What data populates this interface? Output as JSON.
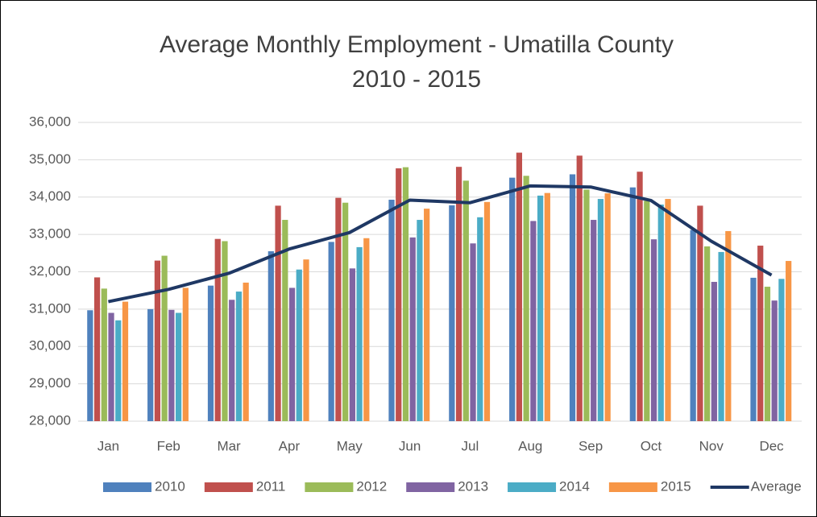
{
  "chart_data": {
    "type": "bar",
    "title": "Average Monthly Employment - Umatilla County",
    "subtitle": "2010 - 2015",
    "categories": [
      "Jan",
      "Feb",
      "Mar",
      "Apr",
      "May",
      "Jun",
      "Jul",
      "Aug",
      "Sep",
      "Oct",
      "Nov",
      "Dec"
    ],
    "series": [
      {
        "name": "2010",
        "color": "#4f81bd",
        "values": [
          30970,
          31000,
          31630,
          32550,
          32800,
          33930,
          33780,
          34520,
          34610,
          34260,
          33120,
          31840
        ]
      },
      {
        "name": "2011",
        "color": "#c0504d",
        "values": [
          31850,
          32300,
          32880,
          33770,
          33980,
          34770,
          34810,
          35190,
          35110,
          34680,
          33770,
          32700
        ]
      },
      {
        "name": "2012",
        "color": "#9bbb59",
        "values": [
          31550,
          32430,
          32820,
          33390,
          33850,
          34800,
          34440,
          34570,
          34200,
          33900,
          32680,
          31600
        ]
      },
      {
        "name": "2013",
        "color": "#8064a2",
        "values": [
          30900,
          30980,
          31250,
          31570,
          32090,
          32920,
          32760,
          33360,
          33390,
          32870,
          31730,
          31230
        ]
      },
      {
        "name": "2014",
        "color": "#4bacc6",
        "values": [
          30700,
          30900,
          31470,
          32060,
          32660,
          33390,
          33460,
          34040,
          33950,
          33800,
          32530,
          31810
        ]
      },
      {
        "name": "2015",
        "color": "#f79646",
        "values": [
          31200,
          31570,
          31710,
          32330,
          32900,
          33690,
          33870,
          34110,
          34100,
          33950,
          33090,
          32290
        ]
      },
      {
        "name": "Average",
        "color": "#1f3864",
        "type": "line",
        "values": [
          31200,
          31530,
          31960,
          32610,
          33050,
          33920,
          33850,
          34300,
          34270,
          33910,
          32820,
          31910
        ]
      }
    ],
    "ylim": [
      28000,
      36000
    ],
    "yticks": [
      {
        "value": 28000,
        "label": "28,000"
      },
      {
        "value": 29000,
        "label": "29,000"
      },
      {
        "value": 30000,
        "label": "30,000"
      },
      {
        "value": 31000,
        "label": "31,000"
      },
      {
        "value": 32000,
        "label": "32,000"
      },
      {
        "value": 33000,
        "label": "33,000"
      },
      {
        "value": 34000,
        "label": "34,000"
      },
      {
        "value": 35000,
        "label": "35,000"
      },
      {
        "value": 36000,
        "label": "36,000"
      }
    ],
    "grid": true,
    "legend": "bottom"
  }
}
